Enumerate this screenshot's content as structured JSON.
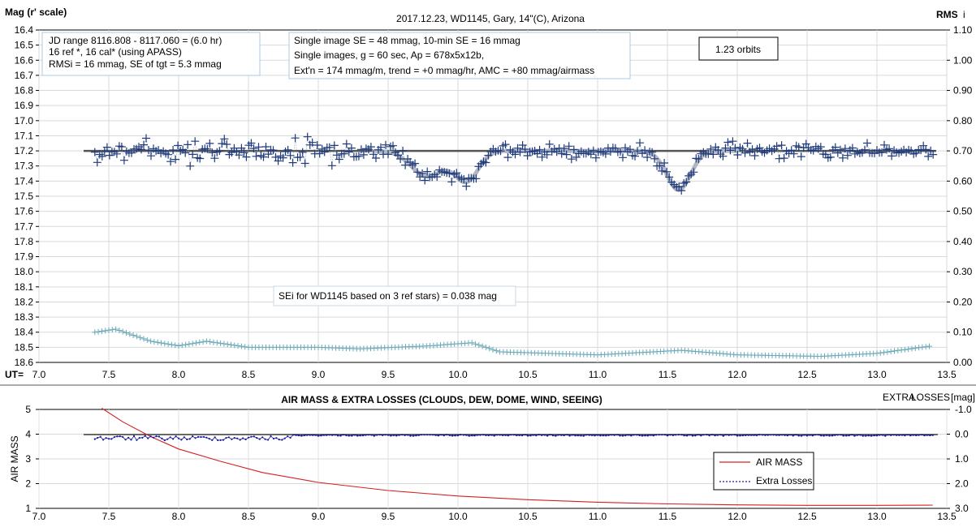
{
  "chart_data": [
    {
      "type": "scatter",
      "title": "2017.12.23,  WD1145, Gary, 14\"(C), Arizona",
      "ylabel_left": "Mag (r' scale)",
      "ylabel_right": "RMS",
      "ylabel_right_suffix": "i",
      "x_axis_prefix": "UT=",
      "xlim": [
        7.0,
        13.5
      ],
      "ylim_left": [
        16.4,
        18.6
      ],
      "ylim_right": [
        0.0,
        1.1
      ],
      "left_reversed": true,
      "grid": true,
      "x_ticks": [
        "7.0",
        "7.5",
        "8.0",
        "8.5",
        "9.0",
        "9.5",
        "10.0",
        "10.5",
        "11.0",
        "11.5",
        "12.0",
        "12.5",
        "13.0",
        "13.5"
      ],
      "left_ticks": [
        "16.4",
        "16.5",
        "16.6",
        "16.7",
        "16.8",
        "16.9",
        "17.0",
        "17.1",
        "17.2",
        "17.3",
        "17.4",
        "17.5",
        "17.6",
        "17.7",
        "17.8",
        "17.9",
        "18.0",
        "18.1",
        "18.2",
        "18.3",
        "18.4",
        "18.5",
        "18.6"
      ],
      "right_ticks": [
        "1.10",
        "1.00",
        "0.90",
        "0.80",
        "0.70",
        "0.60",
        "0.50",
        "0.40",
        "0.30",
        "0.20",
        "0.10",
        "0.00"
      ],
      "reference_level": 17.2,
      "colors": {
        "magnitude": "#1f3a7a",
        "model": "#b4b8c2",
        "rms": "#6aaab8",
        "reference": "#555555"
      },
      "annotations": {
        "info_box": [
          "JD range  8116.808 - 8117.060  = (6.0 hr)",
          "16 ref *, 16 cal* (using APASS)",
          "RMSi = 16 mmag, SE of tgt = 5.3 mmag"
        ],
        "se_box_line1": "Single image SE = 48 mmag, 10-min SE = 16 mmag",
        "se_box_line2": "Single images, g = 60 sec, Ap = 678x5x12b,",
        "se_box_line3": "Ext'n = 174  mmag/m, trend = +0 mmag/hr, AMC = +80 mmag/airmass",
        "orbits": "1.23 orbits",
        "sei_note": "SEi for WD1145 based on 3 ref stars) = 0.038 mag"
      },
      "magnitude_series": {
        "baseline": 17.2,
        "dips": [
          {
            "center_ut": 9.78,
            "depth_mag": 0.17,
            "width_hr": 0.16
          },
          {
            "center_ut": 10.06,
            "depth_mag": 0.2,
            "width_hr": 0.12
          },
          {
            "center_ut": 11.58,
            "depth_mag": 0.26,
            "width_hr": 0.12
          }
        ],
        "scatter_mag_early": 0.09,
        "scatter_mag_late": 0.045
      },
      "rms_series": {
        "points": [
          [
            7.4,
            0.1
          ],
          [
            7.55,
            0.11
          ],
          [
            7.8,
            0.07
          ],
          [
            8.0,
            0.055
          ],
          [
            8.2,
            0.07
          ],
          [
            8.5,
            0.05
          ],
          [
            9.0,
            0.05
          ],
          [
            9.3,
            0.045
          ],
          [
            9.8,
            0.055
          ],
          [
            10.1,
            0.065
          ],
          [
            10.3,
            0.035
          ],
          [
            11.0,
            0.025
          ],
          [
            11.6,
            0.04
          ],
          [
            12.0,
            0.025
          ],
          [
            12.6,
            0.02
          ],
          [
            13.0,
            0.03
          ],
          [
            13.4,
            0.055
          ]
        ]
      }
    },
    {
      "type": "line",
      "title": "AIR MASS & EXTRA LOSSES (CLOUDS, DEW, DOME, WIND, SEEING)",
      "ylabel_left": "AIR MASS",
      "ylabel_right_small": "EXTRA",
      "ylabel_right_large": "LOSSES",
      "ylabel_right_unit": "[mag]",
      "xlim": [
        7.0,
        13.5
      ],
      "ylim_left": [
        1,
        5
      ],
      "ylim_right": [
        -1.0,
        3.0
      ],
      "x_ticks": [
        "7.0",
        "7.5",
        "8.0",
        "8.5",
        "9.0",
        "9.5",
        "10.0",
        "10.5",
        "11.0",
        "11.5",
        "12.0",
        "12.5",
        "13.0",
        "13.5"
      ],
      "left_ticks": [
        "5",
        "4",
        "3",
        "2",
        "1"
      ],
      "right_ticks": [
        "-1.0",
        "0.0",
        "1.0",
        "2.0",
        "3.0"
      ],
      "legend": [
        "AIR MASS",
        "Extra Losses"
      ],
      "legend_position": "bottom-right",
      "colors": {
        "airmass": "#d62020",
        "losses": "#1a1aa0",
        "reference": "#1a1a1a"
      },
      "airmass_series": [
        [
          7.45,
          5.05
        ],
        [
          7.6,
          4.5
        ],
        [
          7.8,
          3.9
        ],
        [
          8.0,
          3.4
        ],
        [
          8.3,
          2.9
        ],
        [
          8.6,
          2.45
        ],
        [
          9.0,
          2.05
        ],
        [
          9.5,
          1.72
        ],
        [
          10.0,
          1.5
        ],
        [
          10.5,
          1.35
        ],
        [
          11.0,
          1.25
        ],
        [
          11.5,
          1.18
        ],
        [
          12.0,
          1.14
        ],
        [
          12.5,
          1.12
        ],
        [
          13.0,
          1.12
        ],
        [
          13.4,
          1.13
        ]
      ],
      "losses_series": {
        "start_ut": 7.4,
        "end_ut": 13.4,
        "early_offset_mag": 0.18,
        "late_offset_mag": 0.05
      }
    }
  ]
}
